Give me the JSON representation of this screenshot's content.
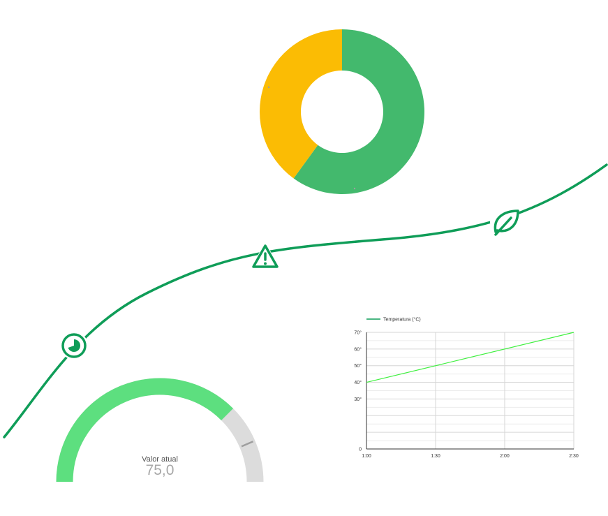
{
  "colors": {
    "donut_green": "#43b96d",
    "donut_yellow": "#fbbc04",
    "curve_green": "#0f9d58",
    "gauge_fill": "#5ddf7f",
    "gauge_track": "#dcdcdc",
    "marker": "#9e9e9e",
    "line_series": "#3ff03f",
    "legend_swatch": "#0f9d58",
    "grid": "#d6d6d6"
  },
  "decoration": {
    "icons": [
      "timer-icon",
      "warning-icon",
      "leaf-icon"
    ]
  },
  "chart_data": [
    {
      "type": "pie",
      "variant": "donut",
      "slices": [
        {
          "value": 60,
          "color": "#43b96d"
        },
        {
          "value": 40,
          "color": "#fbbc04"
        }
      ],
      "legend": "none"
    },
    {
      "type": "gauge",
      "label": "Valor atual",
      "value_text": "75,0",
      "value": 75,
      "range": [
        0,
        100
      ],
      "marker": 87
    },
    {
      "type": "line",
      "x_labels": [
        "1:00",
        "1:30",
        "2:00",
        "2:30"
      ],
      "y_ticks": [
        {
          "value": 0,
          "label": "0"
        },
        {
          "value": 30,
          "label": "30°"
        },
        {
          "value": 40,
          "label": "40°"
        },
        {
          "value": 50,
          "label": "50°"
        },
        {
          "value": 60,
          "label": "60°"
        },
        {
          "value": 70,
          "label": "70°"
        }
      ],
      "ylim": [
        0,
        70
      ],
      "series": [
        {
          "name": "Temperatura (°C)",
          "color": "#3ff03f",
          "x": [
            "1:00",
            "2:30"
          ],
          "y": [
            40,
            70
          ]
        }
      ],
      "legend": "top-left",
      "grid": true
    }
  ]
}
